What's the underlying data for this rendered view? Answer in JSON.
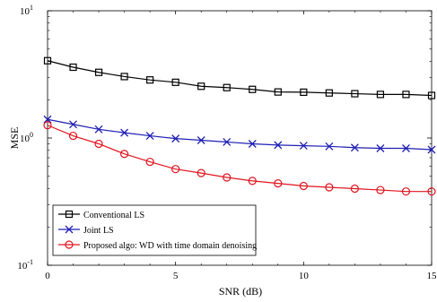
{
  "chart_data": {
    "type": "line",
    "xlabel": "SNR (dB)",
    "ylabel": "MSE",
    "xlim": [
      0,
      15
    ],
    "ylim": [
      0.1,
      10
    ],
    "y_scale": "log",
    "grid": false,
    "legend_position": "bottom-left",
    "x_ticks": [
      "0",
      "5",
      "10",
      "15"
    ],
    "y_ticks": [
      {
        "value": 0.1,
        "base": "10",
        "exp": "-1"
      },
      {
        "value": 1,
        "base": "10",
        "exp": "0"
      },
      {
        "value": 10,
        "base": "10",
        "exp": "1"
      }
    ],
    "x": [
      0,
      1,
      2,
      3,
      4,
      5,
      6,
      7,
      8,
      9,
      10,
      11,
      12,
      13,
      14,
      15
    ],
    "series": [
      {
        "name": "Conventional LS",
        "color": "#000000",
        "marker": "square",
        "values": [
          4.05,
          3.6,
          3.28,
          3.04,
          2.86,
          2.74,
          2.55,
          2.49,
          2.41,
          2.3,
          2.29,
          2.26,
          2.23,
          2.2,
          2.2,
          2.16
        ]
      },
      {
        "name": "Joint LS",
        "color": "#1f1fb4",
        "marker": "x",
        "values": [
          1.4,
          1.28,
          1.17,
          1.1,
          1.04,
          0.99,
          0.96,
          0.93,
          0.9,
          0.88,
          0.87,
          0.86,
          0.84,
          0.83,
          0.83,
          0.81
        ]
      },
      {
        "name": "Proposed algo: WD with time domain denoising",
        "color": "#e0141e",
        "marker": "circle",
        "values": [
          1.26,
          1.04,
          0.9,
          0.75,
          0.65,
          0.57,
          0.53,
          0.49,
          0.46,
          0.44,
          0.42,
          0.41,
          0.4,
          0.39,
          0.38,
          0.38
        ]
      }
    ]
  }
}
